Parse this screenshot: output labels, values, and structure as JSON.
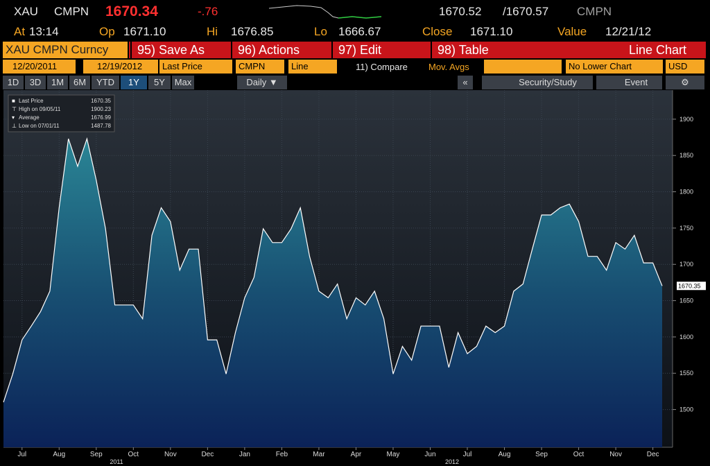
{
  "header": {
    "ticker": "XAU",
    "source": "CMPN",
    "last": "1670.34",
    "change": "-.76",
    "bid": "1670.52",
    "ask": "/1670.57",
    "source2": "CMPN",
    "at_label": "At",
    "at": "13:14",
    "op_label": "Op",
    "op": "1671.10",
    "hi_label": "Hi",
    "hi": "1676.85",
    "lo_label": "Lo",
    "lo": "1666.67",
    "close_label": "Close",
    "close": "1671.10",
    "value_label": "Value",
    "value_date": "12/21/12"
  },
  "toolbar": {
    "security": "XAU CMPN Curncy",
    "buttons": [
      "95) Save As",
      "96) Actions",
      "97) Edit",
      "98) Table"
    ],
    "view": "Line Chart",
    "start_date": "12/20/2011",
    "end_date": "12/19/2012",
    "field": "Last Price",
    "pricing_source": "CMPN",
    "style": "Line",
    "compare": "11) Compare",
    "mov_avgs": "Mov. Avgs",
    "lower_chart": "No Lower Chart",
    "currency": "USD",
    "periods": [
      "1D",
      "3D",
      "1M",
      "6M",
      "YTD",
      "1Y",
      "5Y",
      "Max"
    ],
    "active_period": "1Y",
    "frequency": "Daily ▼",
    "collapse": "«",
    "study": "Security/Study",
    "event": "Event"
  },
  "chart_data": {
    "type": "area",
    "categories": [
      null,
      null,
      "Jul",
      null,
      null,
      null,
      "Aug",
      null,
      null,
      null,
      "Sep",
      null,
      null,
      null,
      "Oct",
      null,
      null,
      null,
      "Nov",
      null,
      null,
      null,
      "Dec",
      null,
      null,
      null,
      "Jan",
      null,
      null,
      null,
      "Feb",
      null,
      null,
      null,
      "Mar",
      null,
      null,
      null,
      "Apr",
      null,
      null,
      null,
      "May",
      null,
      null,
      null,
      "Jun",
      null,
      null,
      null,
      "Jul",
      null,
      null,
      null,
      "Aug",
      null,
      null,
      null,
      "Sep",
      null,
      null,
      null,
      "Oct",
      null,
      null,
      null,
      "Nov",
      null,
      null,
      null,
      "Dec",
      null
    ],
    "x_groups": [
      "2011",
      "2012"
    ],
    "series": [
      {
        "name": "Last Price",
        "color": "#ffffff",
        "values": [
          1510,
          1549,
          1596,
          1615,
          1635,
          1663,
          1778,
          1873,
          1835,
          1873,
          1816,
          1749,
          1644,
          1644,
          1644,
          1625,
          1740,
          1778,
          1759,
          1692,
          1721,
          1721,
          1596,
          1596,
          1549,
          1606,
          1654,
          1682,
          1749,
          1730,
          1730,
          1749,
          1778,
          1711,
          1663,
          1654,
          1673,
          1625,
          1654,
          1644,
          1663,
          1625,
          1549,
          1587,
          1568,
          1615,
          1615,
          1615,
          1558,
          1606,
          1577,
          1587,
          1615,
          1606,
          1615,
          1663,
          1673,
          1721,
          1768,
          1768,
          1778,
          1783,
          1759,
          1711,
          1711,
          1692,
          1730,
          1721,
          1740,
          1702,
          1702,
          1670.35
        ]
      }
    ],
    "legend": [
      {
        "label": "Last Price",
        "value": 1670.35
      },
      {
        "label": "High on 09/05/11",
        "value": 1900.23
      },
      {
        "label": "Average",
        "value": 1676.99
      },
      {
        "label": "Low on 07/01/11",
        "value": 1487.78
      }
    ],
    "ylim": [
      1448,
      1940
    ],
    "yticks": [
      1500,
      1550,
      1600,
      1650,
      1700,
      1750,
      1800,
      1850,
      1900
    ],
    "grid": true
  }
}
